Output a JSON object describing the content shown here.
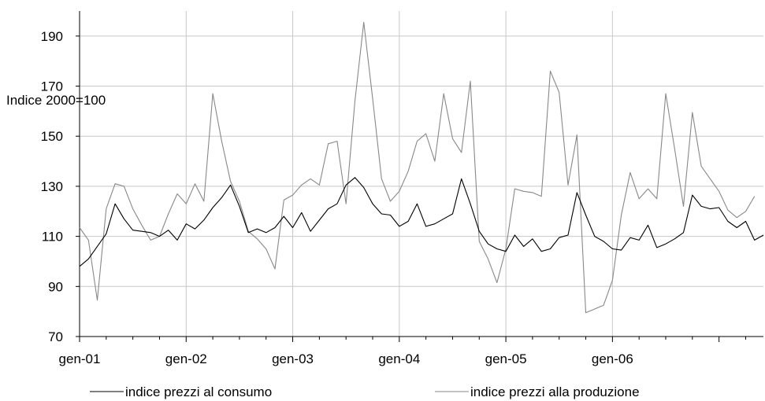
{
  "chart_data": {
    "type": "line",
    "ylabel": "Indice 2000=100",
    "xlabel": "",
    "ylim": [
      70,
      200
    ],
    "yticks": [
      70,
      90,
      110,
      130,
      150,
      170,
      190
    ],
    "xtick_labels": [
      "gen-01",
      "gen-02",
      "gen-03",
      "gen-04",
      "gen-05",
      "gen-06"
    ],
    "grid": true,
    "legend_position": "bottom",
    "series": [
      {
        "name": "indice prezzi al consumo",
        "color": "#000000",
        "values": [
          98,
          101,
          106,
          111,
          123,
          117,
          112.5,
          112,
          111.5,
          110,
          112.5,
          108.5,
          115,
          113,
          116.5,
          121.5,
          125.5,
          130.5,
          122,
          111.5,
          113,
          111.5,
          113.5,
          118,
          113.5,
          119.5,
          112,
          116.5,
          121,
          123,
          130.5,
          133.5,
          129.5,
          123,
          119,
          118.5,
          114,
          116,
          123,
          114,
          115,
          117,
          119,
          133,
          123,
          112,
          107,
          105,
          104,
          110.5,
          106,
          109,
          104,
          105,
          109.5,
          110.5,
          127.5,
          118.5,
          110,
          108,
          105,
          104.5,
          109.5,
          108.5,
          114.5,
          105.5,
          107,
          109,
          111.5,
          126.5,
          122,
          121,
          121.5,
          116,
          113.5,
          116,
          108.5,
          110.5
        ]
      },
      {
        "name": "indice prezzi alla produzione",
        "color": "#888888",
        "values": [
          113.5,
          108.5,
          84.5,
          121,
          131,
          130,
          121,
          114.5,
          108.5,
          110,
          119,
          127,
          123,
          131,
          124,
          167,
          148,
          132,
          124,
          112,
          109,
          105,
          97,
          124.5,
          126.5,
          130.5,
          133,
          130.5,
          147,
          148,
          123,
          164,
          195.5,
          165,
          133,
          124,
          128,
          136,
          148,
          151,
          140,
          167,
          149,
          143.5,
          172,
          108,
          101,
          91.5,
          105,
          129,
          128,
          127.5,
          126,
          176,
          167.5,
          130.5,
          150.5,
          79.5,
          81,
          82.5,
          92.5,
          118.5,
          135.5,
          125,
          129,
          125,
          167,
          145,
          122,
          159.5,
          138,
          133,
          128,
          120.5,
          117.5,
          120,
          126
        ]
      }
    ]
  }
}
